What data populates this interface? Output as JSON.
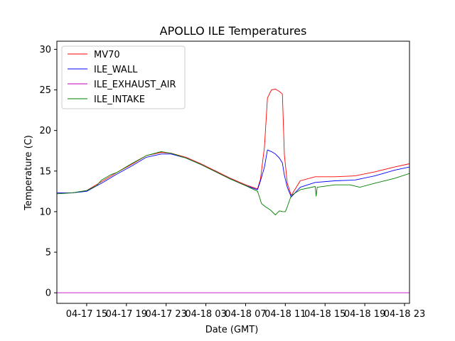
{
  "chart_data": {
    "type": "line",
    "title": "APOLLO ILE Temperatures",
    "xlabel": "Date (GMT)",
    "ylabel": "Temperature (C)",
    "xlim": [
      12.0,
      47.5
    ],
    "ylim": [
      -1.3,
      31
    ],
    "yticks": [
      0,
      5,
      10,
      15,
      20,
      25,
      30
    ],
    "xticks": [
      {
        "value": 15,
        "label": "04-17 15"
      },
      {
        "value": 19,
        "label": "04-17 19"
      },
      {
        "value": 23,
        "label": "04-17 23"
      },
      {
        "value": 27,
        "label": "04-18 03"
      },
      {
        "value": 31,
        "label": "04-18 07"
      },
      {
        "value": 35,
        "label": "04-18 11"
      },
      {
        "value": 39,
        "label": "04-18 15"
      },
      {
        "value": 43,
        "label": "04-18 19"
      },
      {
        "value": 47,
        "label": "04-18 23"
      }
    ],
    "legend_position": "top-left",
    "series": [
      {
        "name": "MV70",
        "color": "#ff0000",
        "x": [
          12.0,
          13.5,
          15.0,
          16.5,
          18.0,
          19.5,
          21.0,
          22.5,
          23.5,
          25.0,
          26.5,
          28.0,
          29.5,
          31.0,
          32.2,
          32.5,
          32.9,
          33.2,
          33.6,
          34.0,
          34.4,
          34.7,
          34.9,
          35.2,
          35.6,
          36.5,
          38.0,
          40.0,
          42.0,
          44.0,
          46.0,
          47.5
        ],
        "y": [
          12.3,
          12.3,
          12.6,
          13.7,
          14.8,
          15.8,
          16.9,
          17.3,
          17.2,
          16.7,
          15.9,
          15.0,
          14.1,
          13.3,
          12.8,
          14.0,
          18.0,
          24.0,
          25.0,
          25.1,
          24.8,
          24.5,
          17.0,
          13.5,
          12.0,
          13.8,
          14.3,
          14.3,
          14.4,
          14.9,
          15.5,
          15.9
        ]
      },
      {
        "name": "ILE_WALL",
        "color": "#0000ff",
        "x": [
          12.0,
          13.5,
          15.0,
          16.5,
          18.0,
          19.5,
          21.0,
          22.5,
          23.5,
          25.0,
          26.5,
          28.0,
          29.5,
          31.0,
          32.2,
          32.5,
          32.9,
          33.2,
          33.6,
          34.0,
          34.4,
          34.7,
          34.9,
          35.2,
          35.6,
          36.5,
          38.0,
          40.0,
          42.0,
          44.0,
          46.0,
          47.5
        ],
        "y": [
          12.3,
          12.3,
          12.5,
          13.5,
          14.6,
          15.6,
          16.7,
          17.1,
          17.1,
          16.6,
          15.8,
          14.9,
          14.0,
          13.2,
          12.7,
          13.8,
          15.5,
          17.6,
          17.4,
          17.1,
          16.6,
          16.0,
          14.5,
          13.0,
          11.8,
          13.0,
          13.6,
          13.8,
          13.9,
          14.4,
          15.1,
          15.5
        ]
      },
      {
        "name": "ILE_EXHAUST_AIR",
        "color": "#bf00bf",
        "x": [
          12.0,
          47.5
        ],
        "y": [
          0.0,
          0.0
        ]
      },
      {
        "name": "ILE_INTAKE",
        "color": "#008000",
        "x": [
          12.0,
          13.5,
          15.0,
          16.0,
          16.5,
          17.5,
          18.0,
          19.5,
          21.0,
          22.5,
          23.5,
          25.0,
          26.5,
          28.0,
          29.5,
          31.0,
          32.2,
          32.4,
          32.6,
          33.0,
          33.5,
          34.0,
          34.4,
          34.7,
          35.0,
          35.2,
          35.6,
          36.5,
          38.0,
          38.1,
          38.2,
          40.0,
          41.5,
          42.5,
          44.0,
          46.0,
          47.5
        ],
        "y": [
          12.2,
          12.3,
          12.6,
          13.2,
          13.9,
          14.6,
          14.8,
          15.9,
          16.9,
          17.4,
          17.2,
          16.6,
          15.8,
          14.9,
          14.0,
          13.2,
          12.5,
          11.8,
          11.0,
          10.6,
          10.2,
          9.6,
          10.1,
          10.0,
          10.0,
          10.6,
          12.0,
          12.7,
          13.1,
          11.9,
          13.0,
          13.3,
          13.3,
          13.0,
          13.5,
          14.1,
          14.7
        ]
      }
    ]
  }
}
